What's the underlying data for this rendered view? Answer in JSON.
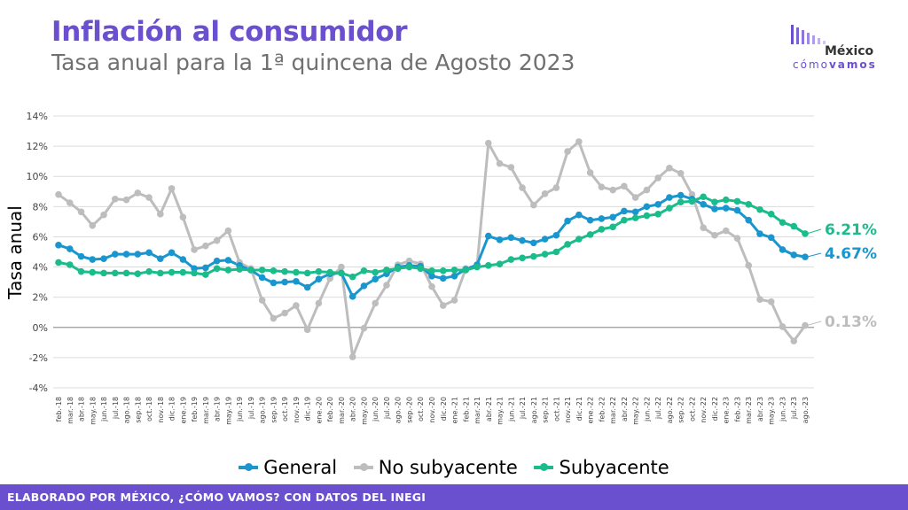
{
  "header": {
    "title": "Inflación al consumidor",
    "subtitle": "Tasa anual para la 1ª quincena de Agosto 2023"
  },
  "logo": {
    "name": "México",
    "tagline_a": "cómo",
    "tagline_b": "vamos"
  },
  "footer": {
    "text": "ELABORADO POR MÉXICO, ¿CÓMO VAMOS? CON DATOS DEL INEGI"
  },
  "colors": {
    "accent": "#6a4fcf",
    "general": "#1a96cf",
    "no_subyacente": "#bdbdbd",
    "subyacente": "#1abc8c"
  },
  "chart_data": {
    "type": "line",
    "title": "Inflación al consumidor",
    "subtitle": "Tasa anual para la 1ª quincena de Agosto 2023",
    "xlabel": "",
    "ylabel": "Tasa anual",
    "ylim": [
      -4,
      14
    ],
    "yticks": [
      -4,
      -2,
      0,
      2,
      4,
      6,
      8,
      10,
      12,
      14
    ],
    "ytick_labels": [
      "-4%",
      "-2%",
      "0%",
      "2%",
      "4%",
      "6%",
      "8%",
      "10%",
      "12%",
      "14%"
    ],
    "grid": true,
    "legend_position": "bottom",
    "categories": [
      "feb.-18",
      "mar.-18",
      "abr.-18",
      "may.-18",
      "jun.-18",
      "jul.-18",
      "ago.-18",
      "sep.-18",
      "oct.-18",
      "nov.-18",
      "dic.-18",
      "ene.-19",
      "feb.-19",
      "mar.-19",
      "abr.-19",
      "may.-19",
      "jun.-19",
      "jul.-19",
      "ago.-19",
      "sep.-19",
      "oct.-19",
      "nov.-19",
      "dic.-19",
      "ene.-20",
      "feb.-20",
      "mar.-20",
      "abr.-20",
      "may.-20",
      "jun.-20",
      "jul.-20",
      "ago.-20",
      "sep.-20",
      "oct.-20",
      "nov.-20",
      "dic.-20",
      "ene.-21",
      "feb.-21",
      "mar.-21",
      "abr.-21",
      "may.-21",
      "jun.-21",
      "jul.-21",
      "ago.-21",
      "sep.-21",
      "oct.-21",
      "nov.-21",
      "dic.-21",
      "ene.-22",
      "feb.-22",
      "mar.-22",
      "abr.-22",
      "may.-22",
      "jun.-22",
      "jul.-22",
      "ago.-22",
      "sep.-22",
      "oct.-22",
      "nov.-22",
      "dic.-22",
      "ene.-23",
      "feb.-23",
      "mar.-23",
      "abr.-23",
      "may.-23",
      "jun.-23",
      "jul.-23",
      "ago.-23"
    ],
    "series": [
      {
        "name": "General",
        "values": [
          5.45,
          5.2,
          4.7,
          4.5,
          4.55,
          4.85,
          4.85,
          4.85,
          4.95,
          4.55,
          4.95,
          4.5,
          3.9,
          3.95,
          4.4,
          4.45,
          4.1,
          3.8,
          3.3,
          2.95,
          3.0,
          3.05,
          2.65,
          3.2,
          3.55,
          3.6,
          2.05,
          2.75,
          3.2,
          3.55,
          4.0,
          4.1,
          4.05,
          3.4,
          3.25,
          3.4,
          3.85,
          4.15,
          6.05,
          5.8,
          5.95,
          5.75,
          5.6,
          5.85,
          6.1,
          7.05,
          7.45,
          7.1,
          7.2,
          7.3,
          7.7,
          7.65,
          8.0,
          8.15,
          8.6,
          8.75,
          8.5,
          8.15,
          7.85,
          7.9,
          7.75,
          7.1,
          6.2,
          5.95,
          5.15,
          4.8,
          4.67
        ],
        "end_label": "4.67%"
      },
      {
        "name": "No subyacente",
        "values": [
          8.8,
          8.25,
          7.65,
          6.75,
          7.45,
          8.5,
          8.45,
          8.9,
          8.6,
          7.5,
          9.2,
          7.3,
          5.15,
          5.4,
          5.75,
          6.4,
          4.3,
          3.9,
          1.8,
          0.6,
          0.95,
          1.45,
          -0.15,
          1.6,
          3.25,
          4.0,
          -1.95,
          -0.05,
          1.6,
          2.8,
          4.15,
          4.4,
          4.2,
          2.7,
          1.45,
          1.8,
          3.9,
          4.1,
          12.2,
          10.85,
          10.6,
          9.25,
          8.1,
          8.85,
          9.25,
          11.65,
          12.3,
          10.25,
          9.3,
          9.1,
          9.35,
          8.6,
          9.1,
          9.9,
          10.55,
          10.2,
          8.8,
          6.6,
          6.1,
          6.4,
          5.9,
          4.1,
          1.85,
          1.7,
          0.05,
          -0.9,
          0.13
        ],
        "end_label": "0.13%"
      },
      {
        "name": "Subyacente",
        "values": [
          4.3,
          4.15,
          3.7,
          3.65,
          3.6,
          3.6,
          3.6,
          3.55,
          3.7,
          3.6,
          3.65,
          3.65,
          3.6,
          3.5,
          3.9,
          3.8,
          3.85,
          3.8,
          3.8,
          3.75,
          3.7,
          3.65,
          3.6,
          3.7,
          3.65,
          3.6,
          3.35,
          3.75,
          3.65,
          3.8,
          3.9,
          4.0,
          3.9,
          3.75,
          3.75,
          3.8,
          3.8,
          4.0,
          4.1,
          4.2,
          4.5,
          4.6,
          4.7,
          4.85,
          5.0,
          5.5,
          5.85,
          6.15,
          6.5,
          6.65,
          7.1,
          7.25,
          7.4,
          7.5,
          7.9,
          8.3,
          8.35,
          8.65,
          8.3,
          8.45,
          8.35,
          8.15,
          7.8,
          7.5,
          6.95,
          6.7,
          6.21
        ],
        "end_label": "6.21%"
      }
    ]
  }
}
